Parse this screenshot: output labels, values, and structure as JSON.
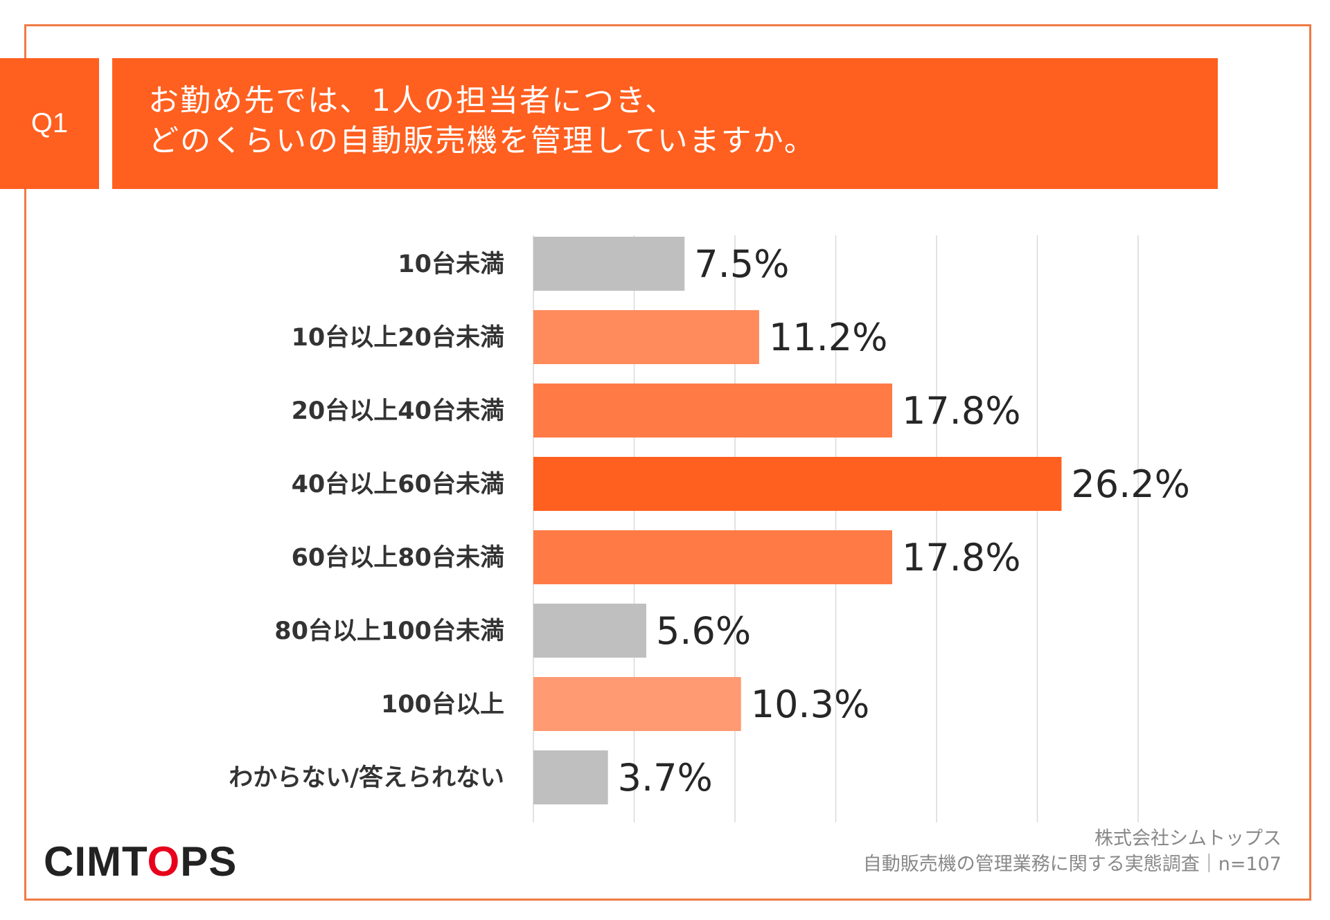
{
  "question": {
    "badge": "Q1",
    "lines": [
      "お勤め先では、1人の担当者につき、",
      "どのくらいの自動販売機を管理していますか。"
    ]
  },
  "chart_data": {
    "type": "bar",
    "orientation": "horizontal",
    "title": "お勤め先では、1人の担当者につき、どのくらいの自動販売機を管理していますか。",
    "xlabel": "",
    "ylabel": "",
    "xlim": [
      0,
      30
    ],
    "grid": true,
    "unit": "%",
    "categories": [
      "10台未満",
      "10台以上20台未満",
      "20台以上40台未満",
      "40台以上60台未満",
      "60台以上80台未満",
      "80台以上100台未満",
      "100台以上",
      "わからない/答えられない"
    ],
    "values": [
      7.5,
      11.2,
      17.8,
      26.2,
      17.8,
      5.6,
      10.3,
      3.7
    ],
    "value_labels": [
      "7.5%",
      "11.2%",
      "17.8%",
      "26.2%",
      "17.8%",
      "5.6%",
      "10.3%",
      "3.7%"
    ],
    "colors": [
      "#bfbfbf",
      "#ff8a5c",
      "#ff7a45",
      "#ff5f1f",
      "#ff7a45",
      "#bfbfbf",
      "#ff9a72",
      "#bfbfbf"
    ]
  },
  "logo": {
    "text_before": "CIMT",
    "o": "O",
    "text_after": "PS"
  },
  "footer": {
    "company": "株式会社シムトップス",
    "survey": "自動販売機の管理業務に関する実態調査｜n=107"
  },
  "colors": {
    "accent": "#ff5f1f",
    "frame": "#ef7a45",
    "grid": "#d9d9d9",
    "label": "#333333",
    "value": "#262626"
  }
}
